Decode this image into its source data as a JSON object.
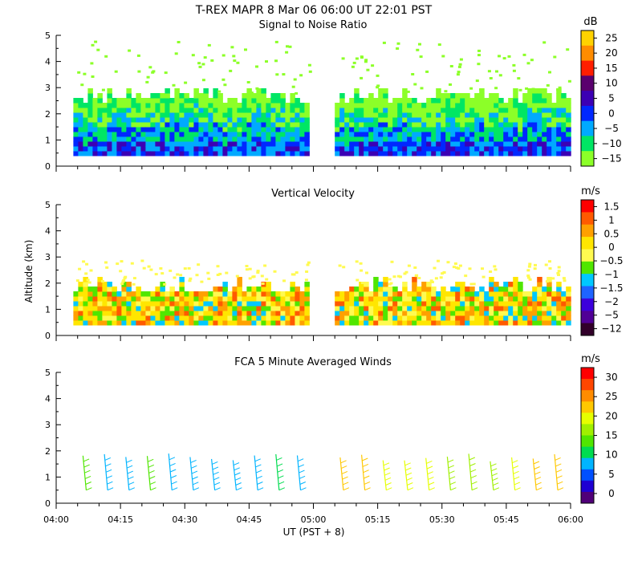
{
  "figure": {
    "main_title": "T-REX   MAPR   8 Mar 06   06:00 UT   22:01   PST",
    "xlabel": "UT  (PST + 8)",
    "ylabel": "Altitude (km)",
    "x_ticks": [
      "04:00",
      "04:15",
      "04:30",
      "04:45",
      "05:00",
      "05:15",
      "05:30",
      "05:45",
      "06:00"
    ]
  },
  "chart_data": [
    {
      "type": "heatmap",
      "title": "Signal to Noise Ratio",
      "unit": "dB",
      "xlim_minutes": [
        0,
        120
      ],
      "ylim": [
        0,
        5
      ],
      "y_ticks": [
        "0",
        "1",
        "2",
        "3",
        "4",
        "5"
      ],
      "colorbar": {
        "labels": [
          "25",
          "20",
          "15",
          "10",
          "5",
          "0",
          "−5",
          "−10",
          "−15"
        ],
        "colors": [
          "#ffd200",
          "#ff8c00",
          "#ff1e00",
          "#5a006e",
          "#3c00b4",
          "#0028ff",
          "#00aaff",
          "#00e664",
          "#8cff28"
        ]
      },
      "data_segments_minutes": [
        [
          4,
          59
        ],
        [
          65,
          120
        ]
      ],
      "data_top_km": 2.8,
      "data_bottom_km": 0.4
    },
    {
      "type": "heatmap",
      "title": "Vertical Velocity",
      "unit": "m/s",
      "xlim_minutes": [
        0,
        120
      ],
      "ylim": [
        0,
        5
      ],
      "y_ticks": [
        "0",
        "1",
        "2",
        "3",
        "4",
        "5"
      ],
      "colorbar": {
        "labels": [
          "1.5",
          "1",
          "0.5",
          "0",
          "−0.5",
          "−1",
          "−1.5",
          "−2",
          "−5",
          "−12"
        ],
        "colors": [
          "#ff0000",
          "#ff5a00",
          "#ffa000",
          "#ffe600",
          "#fffa50",
          "#50e600",
          "#00c8ff",
          "#1e64ff",
          "#3c00dc",
          "#500096",
          "#32002a"
        ]
      },
      "data_segments_minutes": [
        [
          4,
          59
        ],
        [
          65,
          120
        ]
      ],
      "data_top_km": 2.0,
      "data_bottom_km": 0.4
    },
    {
      "type": "scatter",
      "title": "FCA 5 Minute Averaged Winds",
      "unit": "m/s",
      "xlim_minutes": [
        0,
        120
      ],
      "ylim": [
        0,
        5
      ],
      "y_ticks": [
        "0",
        "1",
        "2",
        "3",
        "4",
        "5"
      ],
      "colorbar": {
        "labels": [
          "30",
          "25",
          "20",
          "15",
          "10",
          "5",
          "0"
        ],
        "colors": [
          "#ff0000",
          "#ff4600",
          "#ff8c00",
          "#ffc800",
          "#e6ff00",
          "#a0f000",
          "#50e600",
          "#00dc50",
          "#00b4ff",
          "#0050ff",
          "#1e00d2",
          "#500078"
        ]
      },
      "barb_times_minutes": [
        7,
        12,
        17,
        22,
        27,
        32,
        37,
        42,
        47,
        52,
        57,
        67,
        72,
        77,
        82,
        87,
        92,
        97,
        102,
        107,
        112,
        117
      ],
      "barb_bottom_km": 0.5,
      "barb_top_km": 1.6
    }
  ]
}
